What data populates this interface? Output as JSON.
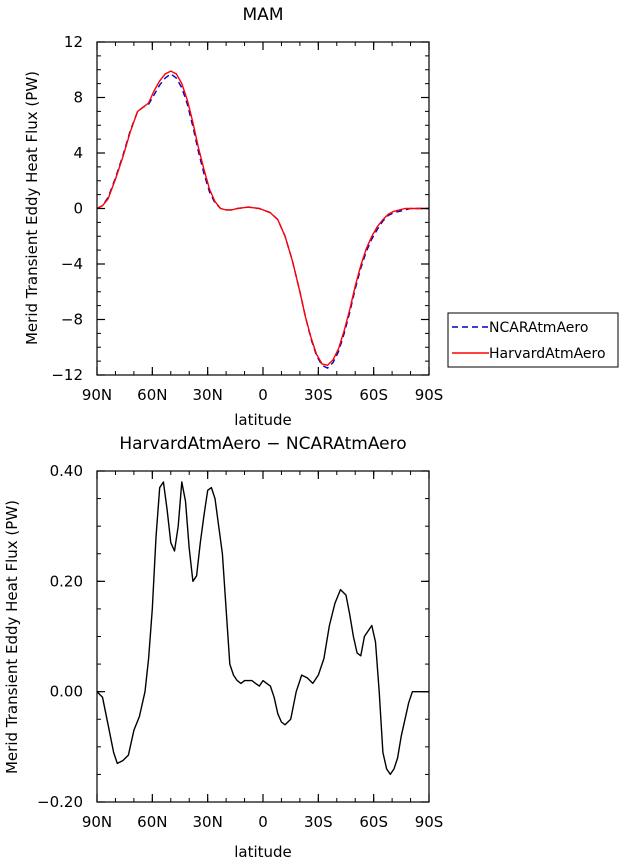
{
  "chart_data": [
    {
      "type": "line",
      "title": "MAM",
      "xlabel": "latitude",
      "ylabel": "Merid Transient Eddy Heat Flux (PW)",
      "x_ticks": [
        90,
        60,
        30,
        0,
        -30,
        -60,
        -90
      ],
      "x_tick_labels": [
        "90N",
        "60N",
        "30N",
        "0",
        "30S",
        "60S",
        "90S"
      ],
      "xlim": [
        90,
        -90
      ],
      "ylim": [
        -12,
        12
      ],
      "y_ticks": [
        12,
        8,
        4,
        0,
        -4,
        -8,
        -12
      ],
      "y_tick_labels": [
        "12",
        "8",
        "4",
        "0",
        "−4",
        "−8",
        "−12"
      ],
      "legend_position": "right",
      "series": [
        {
          "name": "NCARAtmAero",
          "color": "#0000cc",
          "dash": "dashed",
          "x": [
            90,
            87,
            84,
            80,
            76,
            72,
            68,
            65,
            62,
            59,
            56,
            53,
            50,
            47,
            44,
            41,
            38,
            35,
            32,
            29,
            26,
            23,
            20,
            17,
            14,
            11,
            8,
            5,
            2,
            0,
            -4,
            -8,
            -12,
            -16,
            -20,
            -23,
            -26,
            -29,
            -32,
            -35,
            -38,
            -41,
            -44,
            -47,
            -50,
            -53,
            -56,
            -59,
            -62,
            -65,
            -68,
            -71,
            -74,
            -77,
            -80,
            -84,
            -87,
            -90
          ],
          "y": [
            0,
            0.2,
            0.8,
            2.2,
            3.8,
            5.6,
            7.0,
            7.3,
            7.5,
            8.2,
            8.9,
            9.4,
            9.7,
            9.4,
            8.7,
            7.5,
            5.9,
            4.1,
            2.5,
            1.2,
            0.4,
            0.0,
            -0.1,
            -0.1,
            0.0,
            0.05,
            0.1,
            0.05,
            0.0,
            -0.1,
            -0.3,
            -0.8,
            -2.0,
            -3.8,
            -6.0,
            -7.8,
            -9.4,
            -10.6,
            -11.3,
            -11.5,
            -11.1,
            -10.3,
            -9.0,
            -7.5,
            -5.8,
            -4.3,
            -3.1,
            -2.2,
            -1.5,
            -0.9,
            -0.5,
            -0.3,
            -0.2,
            -0.1,
            0.0,
            0.0,
            0.0,
            0.0
          ]
        },
        {
          "name": "HarvardAtmAero",
          "color": "#ff0000",
          "dash": "solid",
          "x": [
            90,
            87,
            84,
            80,
            76,
            72,
            68,
            65,
            62,
            59,
            56,
            53,
            50,
            47,
            44,
            41,
            38,
            35,
            32,
            29,
            26,
            23,
            20,
            17,
            14,
            11,
            8,
            5,
            2,
            0,
            -4,
            -8,
            -12,
            -16,
            -20,
            -23,
            -26,
            -29,
            -32,
            -35,
            -38,
            -41,
            -44,
            -47,
            -50,
            -53,
            -56,
            -59,
            -62,
            -65,
            -68,
            -71,
            -74,
            -77,
            -80,
            -84,
            -87,
            -90
          ],
          "y": [
            0,
            0.2,
            0.7,
            2.1,
            3.7,
            5.5,
            7.0,
            7.3,
            7.6,
            8.5,
            9.2,
            9.7,
            9.9,
            9.7,
            9.0,
            7.8,
            6.2,
            4.4,
            2.8,
            1.4,
            0.5,
            0.0,
            -0.1,
            -0.1,
            0.0,
            0.05,
            0.1,
            0.05,
            0.0,
            -0.1,
            -0.3,
            -0.8,
            -2.0,
            -3.8,
            -6.0,
            -7.8,
            -9.3,
            -10.5,
            -11.2,
            -11.3,
            -10.9,
            -10.1,
            -8.8,
            -7.3,
            -5.6,
            -4.1,
            -2.9,
            -2.0,
            -1.3,
            -0.8,
            -0.4,
            -0.2,
            -0.1,
            0.0,
            0.0,
            0.0,
            0.0,
            0.0
          ]
        }
      ]
    },
    {
      "type": "line",
      "title": "HarvardAtmAero − NCARAtmAero",
      "xlabel": "latitude",
      "ylabel": "Merid Transient Eddy Heat Flux (PW)",
      "x_ticks": [
        90,
        60,
        30,
        0,
        -30,
        -60,
        -90
      ],
      "x_tick_labels": [
        "90N",
        "60N",
        "30N",
        "0",
        "30S",
        "60S",
        "90S"
      ],
      "xlim": [
        90,
        -90
      ],
      "ylim": [
        -0.2,
        0.4
      ],
      "y_ticks": [
        0.4,
        0.2,
        0.0,
        -0.2
      ],
      "y_tick_labels": [
        "0.40",
        "0.20",
        "0.00",
        "−0.20"
      ],
      "series": [
        {
          "color": "#000000",
          "dash": "solid",
          "x": [
            90,
            87,
            84,
            81,
            79,
            76,
            73,
            70,
            67,
            64,
            62,
            60,
            58,
            56,
            54,
            52,
            50,
            48,
            46,
            44,
            42,
            40,
            38,
            36,
            34,
            32,
            30,
            28,
            26,
            24,
            22,
            20,
            18,
            16,
            14,
            12,
            10,
            8,
            6,
            4,
            2,
            0,
            -2,
            -4,
            -6,
            -8,
            -10,
            -12,
            -15,
            -18,
            -21,
            -24,
            -27,
            -30,
            -33,
            -36,
            -39,
            -42,
            -45,
            -47,
            -49,
            -51,
            -53,
            -55,
            -57,
            -59,
            -61,
            -63,
            -65,
            -67,
            -69,
            -71,
            -73,
            -75,
            -77,
            -79,
            -81,
            -84,
            -87,
            -90
          ],
          "y": [
            0.0,
            -0.01,
            -0.06,
            -0.11,
            -0.13,
            -0.125,
            -0.115,
            -0.07,
            -0.045,
            0.0,
            0.06,
            0.15,
            0.28,
            0.37,
            0.38,
            0.33,
            0.27,
            0.255,
            0.3,
            0.38,
            0.345,
            0.26,
            0.2,
            0.21,
            0.27,
            0.32,
            0.365,
            0.37,
            0.35,
            0.3,
            0.25,
            0.15,
            0.05,
            0.03,
            0.02,
            0.015,
            0.02,
            0.02,
            0.02,
            0.015,
            0.01,
            0.02,
            0.015,
            0.01,
            -0.01,
            -0.04,
            -0.055,
            -0.06,
            -0.05,
            0.0,
            0.03,
            0.025,
            0.015,
            0.03,
            0.06,
            0.12,
            0.16,
            0.185,
            0.175,
            0.14,
            0.1,
            0.07,
            0.065,
            0.1,
            0.11,
            0.12,
            0.09,
            0.0,
            -0.11,
            -0.14,
            -0.15,
            -0.14,
            -0.12,
            -0.08,
            -0.05,
            -0.02,
            0.0,
            0.0,
            0.0,
            0.0
          ]
        }
      ]
    }
  ]
}
